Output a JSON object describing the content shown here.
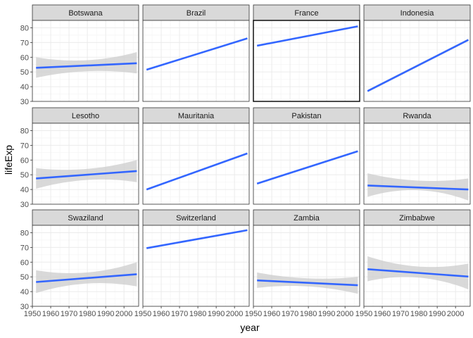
{
  "chart_data": {
    "type": "line",
    "title": "",
    "xlabel": "year",
    "ylabel": "lifeExp",
    "xlim": [
      1950,
      2008
    ],
    "ylim": [
      30,
      85
    ],
    "x_ticks": [
      1950,
      1960,
      1970,
      1980,
      1990,
      2000
    ],
    "y_ticks": [
      30,
      40,
      50,
      60,
      70,
      80
    ],
    "grid": true,
    "facet_rows": 3,
    "facet_cols": 4,
    "highlight_facet": "France",
    "colors": {
      "line": "#3366ff",
      "band": "#cccccc",
      "strip_fill": "#d9d9d9",
      "panel_border": "#333333",
      "highlight_border": "#000000",
      "grid": "#ebebeb"
    },
    "series": [
      {
        "name": "Botswana",
        "x": [
          1952,
          2007
        ],
        "y": [
          52.8,
          55.9
        ],
        "band_lower": [
          [
            1952,
            46.0
          ],
          [
            1980,
            50.5
          ],
          [
            2007,
            49.0
          ]
        ],
        "band_upper": [
          [
            1952,
            60.0
          ],
          [
            1980,
            58.0
          ],
          [
            2007,
            63.5
          ]
        ]
      },
      {
        "name": "Brazil",
        "x": [
          1952,
          2007
        ],
        "y": [
          51.5,
          72.8
        ],
        "band_lower": [
          [
            1952,
            51.0
          ],
          [
            2007,
            72.3
          ]
        ],
        "band_upper": [
          [
            1952,
            52.0
          ],
          [
            2007,
            73.3
          ]
        ]
      },
      {
        "name": "France",
        "x": [
          1952,
          2007
        ],
        "y": [
          67.8,
          81.0
        ],
        "band_lower": [
          [
            1952,
            67.4
          ],
          [
            2007,
            80.6
          ]
        ],
        "band_upper": [
          [
            1952,
            68.2
          ],
          [
            2007,
            81.4
          ]
        ]
      },
      {
        "name": "Indonesia",
        "x": [
          1952,
          2007
        ],
        "y": [
          37.0,
          71.8
        ],
        "band_lower": [
          [
            1952,
            36.2
          ],
          [
            2007,
            71.0
          ]
        ],
        "band_upper": [
          [
            1952,
            37.8
          ],
          [
            2007,
            72.6
          ]
        ]
      },
      {
        "name": "Lesotho",
        "x": [
          1952,
          2007
        ],
        "y": [
          47.5,
          52.5
        ],
        "band_lower": [
          [
            1952,
            40.5
          ],
          [
            1980,
            46.5
          ],
          [
            2007,
            45.0
          ]
        ],
        "band_upper": [
          [
            1952,
            54.5
          ],
          [
            1980,
            54.0
          ],
          [
            2007,
            60.0
          ]
        ]
      },
      {
        "name": "Mauritania",
        "x": [
          1952,
          2007
        ],
        "y": [
          40.0,
          64.5
        ],
        "band_lower": [
          [
            1952,
            39.6
          ],
          [
            2007,
            64.1
          ]
        ],
        "band_upper": [
          [
            1952,
            40.4
          ],
          [
            2007,
            64.9
          ]
        ]
      },
      {
        "name": "Pakistan",
        "x": [
          1952,
          2007
        ],
        "y": [
          44.0,
          66.0
        ],
        "band_lower": [
          [
            1952,
            43.6
          ],
          [
            2007,
            65.6
          ]
        ],
        "band_upper": [
          [
            1952,
            44.4
          ],
          [
            2007,
            66.4
          ]
        ]
      },
      {
        "name": "Rwanda",
        "x": [
          1952,
          2007
        ],
        "y": [
          42.7,
          40.0
        ],
        "band_lower": [
          [
            1952,
            35.0
          ],
          [
            1980,
            39.5
          ],
          [
            2007,
            32.5
          ]
        ],
        "band_upper": [
          [
            1952,
            51.0
          ],
          [
            1980,
            46.0
          ],
          [
            2007,
            47.5
          ]
        ]
      },
      {
        "name": "Swaziland",
        "x": [
          1952,
          2007
        ],
        "y": [
          46.5,
          51.8
        ],
        "band_lower": [
          [
            1952,
            39.0
          ],
          [
            1980,
            45.5
          ],
          [
            2007,
            43.5
          ]
        ],
        "band_upper": [
          [
            1952,
            54.5
          ],
          [
            1980,
            53.0
          ],
          [
            2007,
            60.0
          ]
        ]
      },
      {
        "name": "Switzerland",
        "x": [
          1952,
          2007
        ],
        "y": [
          69.5,
          81.7
        ],
        "band_lower": [
          [
            1952,
            69.2
          ],
          [
            2007,
            81.3
          ]
        ],
        "band_upper": [
          [
            1952,
            69.8
          ],
          [
            2007,
            82.1
          ]
        ]
      },
      {
        "name": "Zambia",
        "x": [
          1952,
          2007
        ],
        "y": [
          47.6,
          44.3
        ],
        "band_lower": [
          [
            1952,
            42.5
          ],
          [
            1980,
            43.5
          ],
          [
            2007,
            38.5
          ]
        ],
        "band_upper": [
          [
            1952,
            53.0
          ],
          [
            1980,
            49.0
          ],
          [
            2007,
            50.0
          ]
        ]
      },
      {
        "name": "Zimbabwe",
        "x": [
          1952,
          2007
        ],
        "y": [
          55.2,
          50.2
        ],
        "band_lower": [
          [
            1952,
            47.0
          ],
          [
            1980,
            49.5
          ],
          [
            2007,
            41.5
          ]
        ],
        "band_upper": [
          [
            1952,
            64.0
          ],
          [
            1980,
            57.0
          ],
          [
            2007,
            59.0
          ]
        ]
      }
    ]
  }
}
